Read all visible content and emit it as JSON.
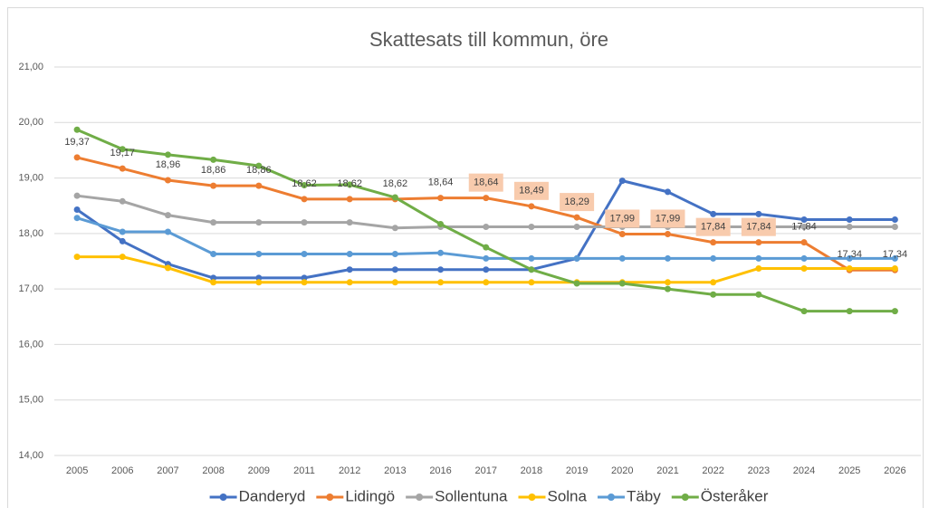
{
  "chart_data": {
    "type": "line",
    "title": "Skattesats till kommun, öre",
    "categories": [
      "2005",
      "2006",
      "2007",
      "2008",
      "2009",
      "2011",
      "2012",
      "2013",
      "2016",
      "2017",
      "2018",
      "2019",
      "2020",
      "2021",
      "2022",
      "2023",
      "2024",
      "2025",
      "2026"
    ],
    "ylim": [
      14,
      21
    ],
    "yticks": [
      {
        "value": 14,
        "label": "14,00"
      },
      {
        "value": 15,
        "label": "15,00"
      },
      {
        "value": 16,
        "label": "16,00"
      },
      {
        "value": 17,
        "label": "17,00"
      },
      {
        "value": 18,
        "label": "18,00"
      },
      {
        "value": 19,
        "label": "19,00"
      },
      {
        "value": 20,
        "label": "20,00"
      },
      {
        "value": 21,
        "label": "21,00"
      }
    ],
    "grid": true,
    "legend": "bottom",
    "series": [
      {
        "name": "Danderyd",
        "color": "#4472c4",
        "values": [
          18.43,
          17.86,
          17.45,
          17.2,
          17.2,
          17.2,
          17.35,
          17.35,
          17.35,
          17.35,
          17.35,
          17.55,
          18.95,
          18.75,
          18.35,
          18.35,
          18.25,
          18.25,
          18.25
        ]
      },
      {
        "name": "Lidingö",
        "color": "#ed7d31",
        "values": [
          19.37,
          19.17,
          18.96,
          18.86,
          18.86,
          18.62,
          18.62,
          18.62,
          18.64,
          18.64,
          18.49,
          18.29,
          17.99,
          17.99,
          17.84,
          17.84,
          17.84,
          17.34,
          17.34
        ],
        "value_labels": [
          "19,37",
          "19,17",
          "18,96",
          "18,86",
          "18,86",
          "18,62",
          "18,62",
          "18,62",
          "18,64",
          "18,64",
          "18,49",
          "18,29",
          "17,99",
          "17,99",
          "17,84",
          "17,84",
          "17,84",
          "17,34",
          "17,34"
        ],
        "value_label_fills": [
          null,
          null,
          null,
          null,
          null,
          null,
          null,
          null,
          null,
          "#f8cbad",
          "#f8cbad",
          "#f8cbad",
          "#f8cbad",
          "#f8cbad",
          "#f8cbad",
          "#f8cbad",
          null,
          null,
          null
        ]
      },
      {
        "name": "Sollentuna",
        "color": "#a5a5a5",
        "values": [
          18.68,
          18.58,
          18.33,
          18.2,
          18.2,
          18.2,
          18.2,
          18.1,
          18.12,
          18.12,
          18.12,
          18.12,
          18.12,
          18.12,
          18.12,
          18.12,
          18.12,
          18.12,
          18.12
        ]
      },
      {
        "name": "Solna",
        "color": "#ffc000",
        "values": [
          17.58,
          17.58,
          17.38,
          17.12,
          17.12,
          17.12,
          17.12,
          17.12,
          17.12,
          17.12,
          17.12,
          17.12,
          17.12,
          17.12,
          17.12,
          17.37,
          17.37,
          17.37,
          17.37
        ]
      },
      {
        "name": "Täby",
        "color": "#5b9bd5",
        "values": [
          18.28,
          18.03,
          18.03,
          17.63,
          17.63,
          17.63,
          17.63,
          17.63,
          17.65,
          17.55,
          17.55,
          17.55,
          17.55,
          17.55,
          17.55,
          17.55,
          17.55,
          17.55,
          17.55
        ]
      },
      {
        "name": "Österåker",
        "color": "#70ad47",
        "values": [
          19.87,
          19.52,
          19.42,
          19.33,
          19.22,
          18.87,
          18.88,
          18.65,
          18.17,
          17.75,
          17.35,
          17.1,
          17.1,
          17.0,
          16.9,
          16.9,
          16.6,
          16.6,
          16.6
        ]
      }
    ]
  }
}
